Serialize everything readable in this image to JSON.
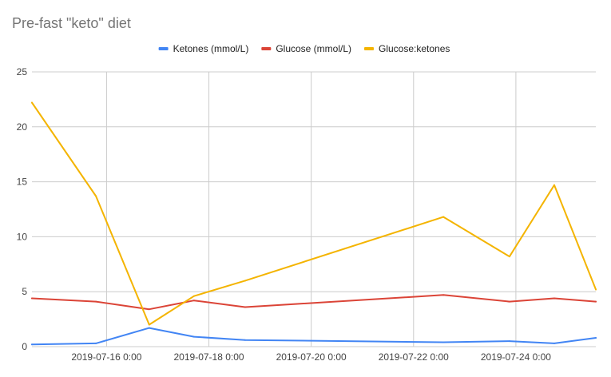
{
  "chart_data": {
    "type": "line",
    "title": "Pre-fast \"keto\" diet",
    "xlabel": "",
    "ylabel": "",
    "legend_position": "top",
    "grid": true,
    "ylim": [
      0,
      25
    ],
    "yticks": [
      0,
      5,
      10,
      15,
      20,
      25
    ],
    "xlim": [
      "2019-07-14 13:00",
      "2019-07-25 13:30"
    ],
    "xticks": [
      "2019-07-16 0:00",
      "2019-07-18 0:00",
      "2019-07-20 0:00",
      "2019-07-22 0:00",
      "2019-07-24 0:00"
    ],
    "x": [
      "2019-07-14 13:00",
      "2019-07-15 19:00",
      "2019-07-16 20:00",
      "2019-07-17 17:00",
      "2019-07-18 17:00",
      "2019-07-22 14:00",
      "2019-07-23 21:00",
      "2019-07-24 18:00",
      "2019-07-25 13:30"
    ],
    "series": [
      {
        "name": "Ketones (mmol/L)",
        "color": "#4285f4",
        "values": [
          0.2,
          0.3,
          1.7,
          0.9,
          0.6,
          0.4,
          0.5,
          0.3,
          0.8
        ]
      },
      {
        "name": "Glucose (mmol/L)",
        "color": "#db4437",
        "values": [
          4.4,
          4.1,
          3.4,
          4.2,
          3.6,
          4.7,
          4.1,
          4.4,
          4.1
        ]
      },
      {
        "name": "Glucose:ketones",
        "color": "#f4b400",
        "values": [
          22.2,
          13.7,
          2.0,
          4.6,
          6.0,
          11.8,
          8.2,
          14.7,
          5.2
        ]
      }
    ]
  }
}
